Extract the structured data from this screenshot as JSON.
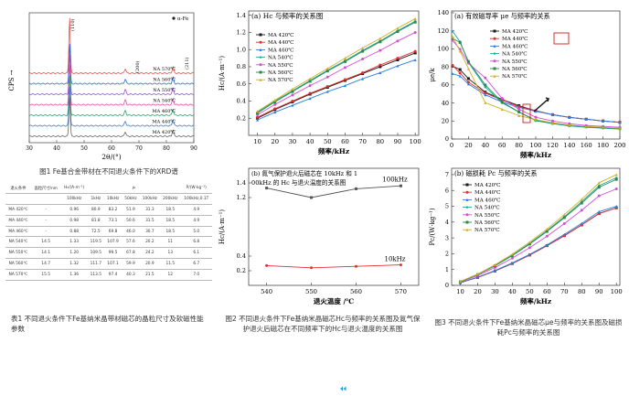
{
  "xrd": {
    "legend": "α-Fe",
    "peaks": [
      "(110)",
      "(200)",
      "(211)"
    ],
    "ylabel": "CPS →",
    "xlabel": "2θ/(°)",
    "xticks": [
      "30",
      "40",
      "50",
      "60",
      "70",
      "80",
      "90"
    ],
    "samples": [
      "NA 570℃",
      "NA 560℃",
      "NA 550℃",
      "NA 540℃",
      "MA 460℃",
      "MA 440℃",
      "MA 420℃"
    ],
    "colors": [
      "#e5534b",
      "#2a6bd6",
      "#9b55d3",
      "#e04ab0",
      "#2aa36f",
      "#3b7bd4",
      "#666666"
    ],
    "caption": "图1 Fe基合金带材在不同退火条件下的XRD谱"
  },
  "table1": {
    "headers": [
      "退火条件",
      "晶粒尺寸/nm",
      "H₂/(A·m⁻¹)",
      "μᵣ",
      "μᵢ",
      "μᵢ",
      "μᵢ",
      "μᵢ",
      "P/(W·kg⁻¹)"
    ],
    "subheaders": [
      "",
      "",
      "100kHz",
      "1kHz",
      "10kHz",
      "50kHz",
      "100kHz",
      "200kHz",
      "100kHz,0.1T"
    ],
    "rows": [
      [
        "MA 420℃",
        "-",
        "0.96",
        "80.9",
        "83.2",
        "51.9",
        "31.3",
        "4.9"
      ],
      [
        "MA 440℃",
        "-",
        "0.98",
        "81.8",
        "73.1",
        "50.6",
        "31.5",
        "4.9"
      ],
      [
        "MA 460℃",
        "-",
        "0.88",
        "72.5",
        "69.8",
        "46.0",
        "30.7",
        "5.0"
      ],
      [
        "NA 540℃",
        "14.5",
        "1.33",
        "119.5",
        "107.9",
        "57.6",
        "20.2",
        "6.8"
      ],
      [
        "NA 550℃",
        "14.1",
        "1.20",
        "109.5",
        "99.5",
        "67.8",
        "24.2",
        "6.1"
      ],
      [
        "NA 560℃",
        "14.7",
        "1.32",
        "111.7",
        "107.1",
        "59.9",
        "20.9",
        "6.7"
      ],
      [
        "NA 570℃",
        "15.5",
        "1.36",
        "113.5",
        "97.4",
        "40.3",
        "21.5",
        "7.0"
      ]
    ],
    "caption": "表1 不同退火条件下Fe基纳米晶带材磁芯的晶粒尺寸及软磁性能参数"
  },
  "chart_a": {
    "title": "(a) Hc 与频率的关系图",
    "ylabel": "Hc/(A·m⁻¹)",
    "xlabel": "频率/kHz",
    "legend": [
      "MA 420℃",
      "MA 440℃",
      "MA 460℃",
      "NA 540℃",
      "NA 550℃",
      "NA 560℃",
      "NA 570℃"
    ]
  },
  "chart_b": {
    "title": "(b) 氮气保护退火后磁芯在 10kHz 和 100kHz 的 Hc 与退火温度的关系图",
    "ylabel": "Hc/(A·m⁻¹)",
    "xlabel": "退火温度 /℃",
    "label_100": "100kHz",
    "label_10": "10kHz"
  },
  "chart_c": {
    "title": "(a) 有效磁导率 μe 与频率的关系",
    "ylabel": "μe/k",
    "xlabel": "频率/kHz",
    "legend": [
      "MA 420℃",
      "MA 440℃",
      "MA 460℃",
      "NA 540℃",
      "NA 550℃",
      "NA 560℃",
      "NA 570℃"
    ]
  },
  "chart_d": {
    "title": "(b) 磁损耗 Pc 与频率的关系",
    "ylabel": "Pc/(W·kg⁻¹)",
    "xlabel": "频率/kHz",
    "legend": [
      "MA 420℃",
      "MA 440℃",
      "MA 460℃",
      "NA 540℃",
      "NA 550℃",
      "NA 560℃",
      "NA 570℃"
    ]
  },
  "series_colors": [
    "#1a1a1a",
    "#e03030",
    "#2a7de0",
    "#1aa7a0",
    "#d050d8",
    "#2a8a4a",
    "#d0b020"
  ],
  "caption2": "图2 不同退火条件下Fe基纳米晶磁芯Hc与频率的关系图及氮气保护退火后磁芯在不同频率下的Hc与退火温度的关系图",
  "caption3": "图3 不同退火条件下Fe基纳米晶磁芯μe与频率的关系图及磁损耗Pc与频率的关系图",
  "chart_data": [
    {
      "type": "line",
      "title": "(a) Hc 与频率的关系图",
      "xlabel": "频率/kHz",
      "ylabel": "Hc/(A·m⁻¹)",
      "x": [
        10,
        20,
        30,
        40,
        50,
        60,
        70,
        80,
        90,
        100
      ],
      "xlim": [
        10,
        100
      ],
      "ylim": [
        0.0,
        1.4
      ],
      "series": [
        {
          "name": "MA 420℃",
          "values": [
            0.2,
            0.3,
            0.39,
            0.48,
            0.56,
            0.64,
            0.72,
            0.8,
            0.88,
            0.96
          ]
        },
        {
          "name": "MA 440℃",
          "values": [
            0.21,
            0.31,
            0.4,
            0.49,
            0.57,
            0.65,
            0.73,
            0.82,
            0.9,
            0.98
          ]
        },
        {
          "name": "MA 460℃",
          "values": [
            0.18,
            0.27,
            0.35,
            0.43,
            0.51,
            0.58,
            0.66,
            0.73,
            0.81,
            0.88
          ]
        },
        {
          "name": "NA 540℃",
          "values": [
            0.27,
            0.4,
            0.52,
            0.64,
            0.76,
            0.87,
            0.99,
            1.1,
            1.22,
            1.33
          ]
        },
        {
          "name": "NA 550℃",
          "values": [
            0.24,
            0.36,
            0.47,
            0.58,
            0.68,
            0.79,
            0.89,
            0.99,
            1.1,
            1.2
          ]
        },
        {
          "name": "NA 560℃",
          "values": [
            0.26,
            0.39,
            0.51,
            0.63,
            0.75,
            0.86,
            0.98,
            1.09,
            1.21,
            1.32
          ]
        },
        {
          "name": "NA 570℃",
          "values": [
            0.28,
            0.41,
            0.54,
            0.66,
            0.78,
            0.9,
            1.02,
            1.13,
            1.25,
            1.36
          ]
        }
      ]
    },
    {
      "type": "line",
      "title": "(b) 氮气保护退火后磁芯在 10kHz 和 100kHz 的 Hc 与退火温度的关系图",
      "xlabel": "退火温度 /℃",
      "ylabel": "Hc/(A·m⁻¹)",
      "x": [
        540,
        550,
        560,
        570
      ],
      "xlim": [
        540,
        570
      ],
      "series": [
        {
          "name": "100kHz",
          "values": [
            1.33,
            1.2,
            1.32,
            1.36
          ]
        },
        {
          "name": "10kHz",
          "values": [
            0.27,
            0.24,
            0.26,
            0.28
          ]
        }
      ]
    },
    {
      "type": "line",
      "title": "(a) 有效磁导率 μe 与频率的关系",
      "xlabel": "频率/kHz",
      "ylabel": "μe/k",
      "x": [
        1,
        10,
        20,
        40,
        60,
        80,
        100,
        120,
        140,
        160,
        180,
        200
      ],
      "xlim": [
        0,
        200
      ],
      "ylim": [
        0,
        140
      ],
      "series": [
        {
          "name": "MA 420℃",
          "values": [
            80.9,
            77,
            67,
            52,
            44,
            37,
            31.3,
            27,
            24,
            22,
            20,
            18.5
          ]
        },
        {
          "name": "MA 440℃",
          "values": [
            81.8,
            73.1,
            63,
            51,
            43,
            36,
            31.5,
            27,
            24,
            22,
            20,
            18.5
          ]
        },
        {
          "name": "MA 460℃",
          "values": [
            72.5,
            69.8,
            61,
            49,
            41,
            35,
            30.7,
            27,
            24,
            22,
            20,
            18.5
          ]
        },
        {
          "name": "NA 540℃",
          "values": [
            119.5,
            107.9,
            85,
            57.6,
            40,
            30,
            20.2,
            17,
            14.5,
            13,
            12,
            11
          ]
        },
        {
          "name": "NA 550℃",
          "values": [
            109.5,
            99.5,
            84,
            67.8,
            45,
            33,
            24.2,
            20,
            17,
            15,
            14,
            13
          ]
        },
        {
          "name": "NA 560℃",
          "values": [
            111.7,
            107.1,
            86,
            59.9,
            41,
            30,
            20.9,
            17.5,
            15,
            13.5,
            12.5,
            11.5
          ]
        },
        {
          "name": "NA 570℃",
          "values": [
            113.5,
            97.4,
            78,
            40.3,
            33,
            26,
            21.5,
            18,
            15.5,
            14,
            13,
            12
          ]
        }
      ]
    },
    {
      "type": "line",
      "title": "(b) 磁损耗 Pc 与频率的关系",
      "xlabel": "频率/kHz",
      "ylabel": "Pc/(W·kg⁻¹)",
      "x": [
        10,
        20,
        30,
        40,
        50,
        60,
        70,
        80,
        90,
        100
      ],
      "xlim": [
        10,
        100
      ],
      "ylim": [
        0,
        7
      ],
      "series": [
        {
          "name": "MA 420℃",
          "values": [
            0.17,
            0.5,
            0.91,
            1.38,
            1.92,
            2.51,
            3.14,
            3.82,
            4.54,
            4.9
          ]
        },
        {
          "name": "MA 440℃",
          "values": [
            0.17,
            0.5,
            0.91,
            1.38,
            1.92,
            2.51,
            3.14,
            3.82,
            4.54,
            4.9
          ]
        },
        {
          "name": "MA 460℃",
          "values": [
            0.18,
            0.52,
            0.94,
            1.42,
            1.96,
            2.56,
            3.22,
            3.92,
            4.66,
            5.0
          ]
        },
        {
          "name": "NA 540℃",
          "values": [
            0.24,
            0.69,
            1.26,
            1.91,
            2.65,
            3.46,
            4.34,
            5.29,
            6.3,
            6.8
          ]
        },
        {
          "name": "NA 550℃",
          "values": [
            0.22,
            0.62,
            1.13,
            1.72,
            2.38,
            3.11,
            3.9,
            4.75,
            5.66,
            6.1
          ]
        },
        {
          "name": "NA 560℃",
          "values": [
            0.23,
            0.68,
            1.24,
            1.88,
            2.61,
            3.41,
            4.28,
            5.2,
            6.2,
            6.7
          ]
        },
        {
          "name": "NA 570℃",
          "values": [
            0.25,
            0.71,
            1.3,
            1.97,
            2.73,
            3.56,
            4.47,
            5.44,
            6.48,
            7.0
          ]
        }
      ]
    }
  ]
}
